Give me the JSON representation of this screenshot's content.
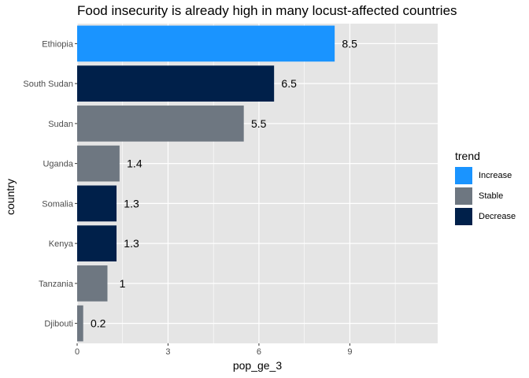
{
  "chart_data": {
    "type": "bar",
    "orientation": "horizontal",
    "title": "Food insecurity is already high in many locust-affected countries",
    "xlabel": "pop_ge_3",
    "ylabel": "country",
    "xlim": [
      0,
      11.9
    ],
    "xticks": [
      0,
      3,
      6,
      9
    ],
    "grid": true,
    "legend_position": "right",
    "legend_title": "trend",
    "legend": [
      {
        "name": "Increase",
        "color": "#1a94ff"
      },
      {
        "name": "Stable",
        "color": "#6e7781"
      },
      {
        "name": "Decrease",
        "color": "#00204a"
      }
    ],
    "categories": [
      "Ethiopia",
      "South Sudan",
      "Sudan",
      "Uganda",
      "Somalia",
      "Kenya",
      "Tanzania",
      "Djibouti"
    ],
    "values": [
      8.5,
      6.5,
      5.5,
      1.4,
      1.3,
      1.3,
      1,
      0.2
    ],
    "value_labels": [
      "8.5",
      "6.5",
      "5.5",
      "1.4",
      "1.3",
      "1.3",
      "1",
      "0.2"
    ],
    "trend": [
      "Increase",
      "Decrease",
      "Stable",
      "Stable",
      "Decrease",
      "Decrease",
      "Stable",
      "Stable"
    ],
    "panel_background": "#e5e5e5",
    "grid_color": "#ffffff"
  }
}
